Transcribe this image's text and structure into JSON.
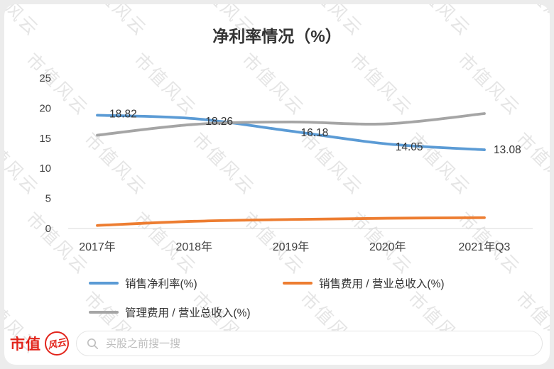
{
  "title": "净利率情况（%）",
  "watermark": {
    "text": "市值风云"
  },
  "chart_data": {
    "type": "line",
    "categories": [
      "2017年",
      "2018年",
      "2019年",
      "2020年",
      "2021年Q3"
    ],
    "series": [
      {
        "name": "销售净利率(%)",
        "color": "#5B9BD5",
        "values": [
          18.82,
          18.26,
          16.18,
          14.05,
          13.08
        ]
      },
      {
        "name": "销售费用 / 营业总收入(%)",
        "color": "#ED7D31",
        "values": [
          0.5,
          1.2,
          1.5,
          1.7,
          1.8
        ]
      },
      {
        "name": "管理费用 / 营业总收入(%)",
        "color": "#A5A5A5",
        "values": [
          15.5,
          17.3,
          17.7,
          17.4,
          19.1
        ]
      }
    ],
    "data_labels": [
      "18.82",
      "18.26",
      "16.18",
      "14.05",
      "13.08"
    ],
    "labeled_series": 0,
    "title": "净利率情况（%）",
    "xlabel": "",
    "ylabel": "",
    "ylim": [
      0,
      25
    ],
    "yticks": [
      0,
      5,
      10,
      15,
      20,
      25
    ],
    "grid": false,
    "legend_position": "bottom"
  },
  "footer": {
    "logo_text": "市值",
    "logo_badge": "风云",
    "search_placeholder": "买股之前搜一搜"
  }
}
